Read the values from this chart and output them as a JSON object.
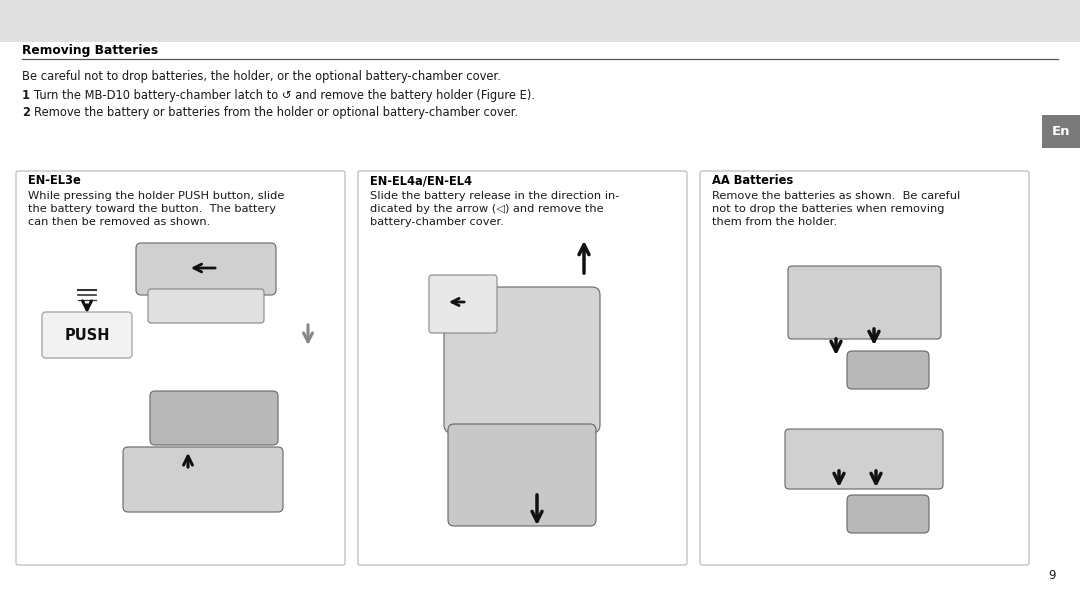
{
  "bg_top_color": "#e0e0e0",
  "bg_main_color": "#ffffff",
  "page_number": "9",
  "title": "Removing Batteries",
  "intro_text": "Be careful not to drop batteries, the holder, or the optional battery-chamber cover.",
  "step1_num": "1",
  "step1_text": "Turn the MB-D10 battery-chamber latch to ↺ and remove the battery holder (Figure E).",
  "step2_num": "2",
  "step2_text": "Remove the battery or batteries from the holder or optional battery-chamber cover.",
  "en_tab_color": "#7a7a7a",
  "en_tab_text": "En",
  "box1_title": "EN-EL3e",
  "box1_text": "While pressing the holder PUSH button, slide\nthe battery toward the button.  The battery\ncan then be removed as shown.",
  "box2_title": "EN-EL4a/EN-EL4",
  "box2_text": "Slide the battery release in the direction in-\ndicated by the arrow (◁) and remove the\nbattery-chamber cover.",
  "box3_title": "AA Batteries",
  "box3_text": "Remove the batteries as shown.  Be careful\nnot to drop the batteries when removing\nthem from the holder.",
  "box_border_color": "#b0b0b0",
  "box_bg_color": "#ffffff",
  "title_line_color": "#555555",
  "text_color": "#1a1a1a",
  "title_color": "#000000",
  "gray_color": "#888888",
  "light_gray": "#d0d0d0",
  "mid_gray": "#b8b8b8",
  "dark_gray": "#707070"
}
